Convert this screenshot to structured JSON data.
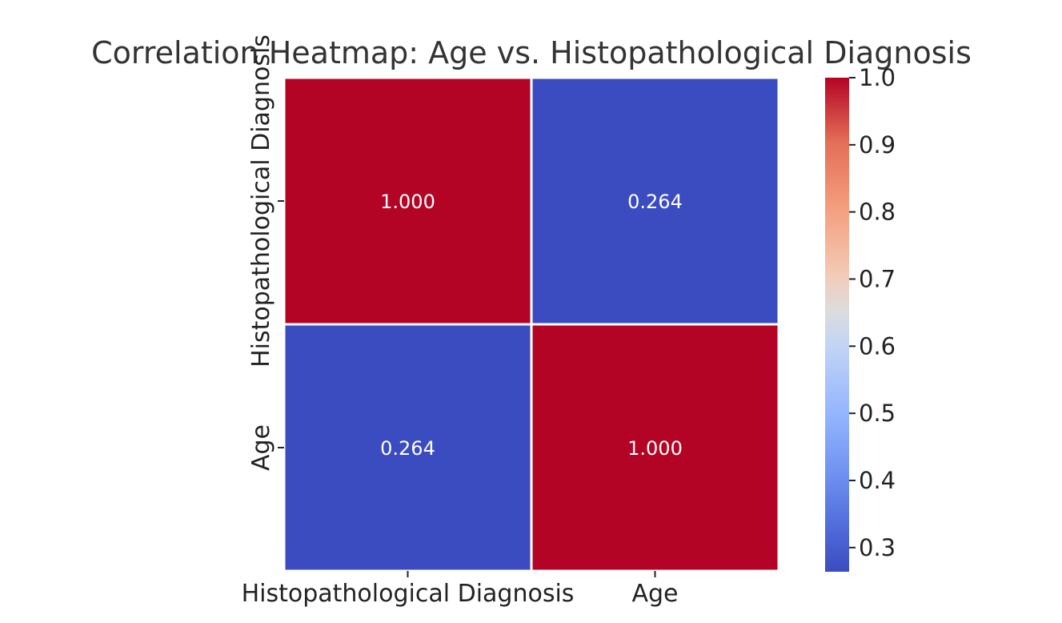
{
  "chart_data": {
    "type": "heatmap",
    "title": "Correlation Heatmap: Age vs. Histopathological Diagnosis",
    "rows": [
      "Histopathological Diagnosis",
      "Age"
    ],
    "cols": [
      "Histopathological Diagnosis",
      "Age"
    ],
    "values": [
      [
        1.0,
        0.264
      ],
      [
        0.264,
        1.0
      ]
    ],
    "cell_labels": [
      [
        "1.000",
        "0.264"
      ],
      [
        "0.264",
        "1.000"
      ]
    ],
    "colormap": "coolwarm",
    "colorbar": {
      "range": [
        0.264,
        1.0
      ],
      "ticks": [
        "0.3",
        "0.4",
        "0.5",
        "0.6",
        "0.7",
        "0.8",
        "0.9",
        "1.0"
      ],
      "tick_values": [
        0.3,
        0.4,
        0.5,
        0.6,
        0.7,
        0.8,
        0.9,
        1.0
      ]
    },
    "colors": {
      "low": "#3b4cc0",
      "high": "#b40426",
      "title": "#333333",
      "label": "#222222",
      "annotation": "#ffffff"
    }
  }
}
